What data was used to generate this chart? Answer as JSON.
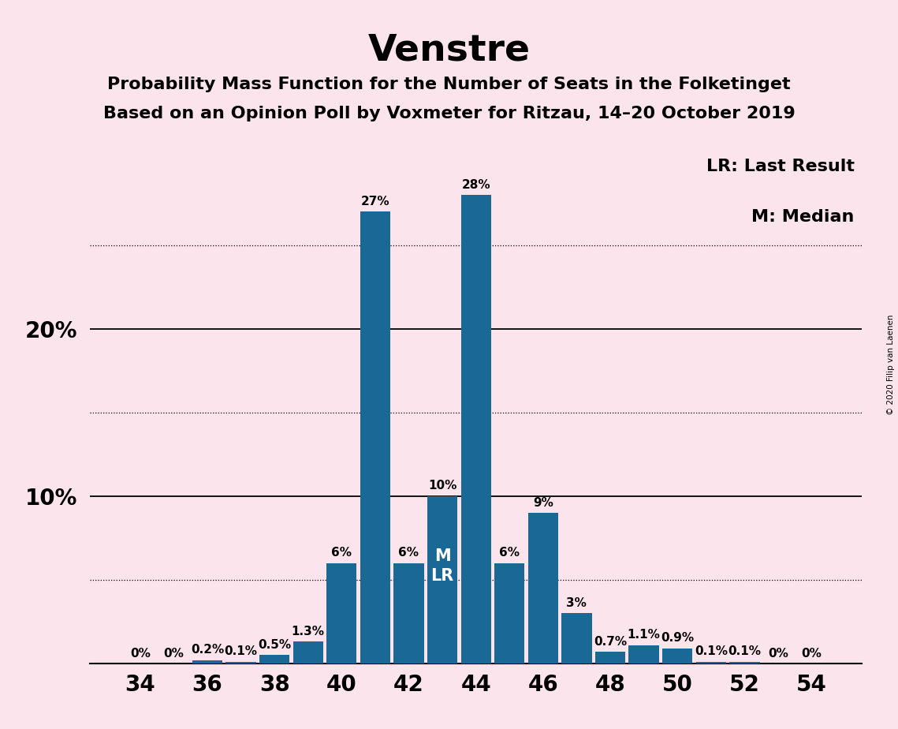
{
  "title": "Venstre",
  "subtitle1": "Probability Mass Function for the Number of Seats in the Folketinget",
  "subtitle2": "Based on an Opinion Poll by Voxmeter for Ritzau, 14–20 October 2019",
  "copyright": "© 2020 Filip van Laenen",
  "seats": [
    34,
    35,
    36,
    37,
    38,
    39,
    40,
    41,
    42,
    43,
    44,
    45,
    46,
    47,
    48,
    49,
    50,
    51,
    52,
    53,
    54
  ],
  "probabilities": [
    0.0,
    0.0,
    0.2,
    0.1,
    0.5,
    1.3,
    6.0,
    27.0,
    6.0,
    10.0,
    28.0,
    6.0,
    9.0,
    3.0,
    0.7,
    1.1,
    0.9,
    0.1,
    0.1,
    0.0,
    0.0
  ],
  "bar_color": "#1a6896",
  "background_color": "#fce4ec",
  "median_seat": 43,
  "last_result_seat": 43,
  "solid_ticks": [
    10,
    20
  ],
  "dotted_ticks": [
    5,
    15,
    25
  ],
  "xlabel_ticks": [
    34,
    36,
    38,
    40,
    42,
    44,
    46,
    48,
    50,
    52,
    54
  ],
  "legend_lr": "LR: Last Result",
  "legend_m": "M: Median",
  "bar_label_fontsize": 11,
  "title_fontsize": 34,
  "subtitle_fontsize": 16,
  "tick_label_fontsize": 20,
  "legend_fontsize": 16
}
